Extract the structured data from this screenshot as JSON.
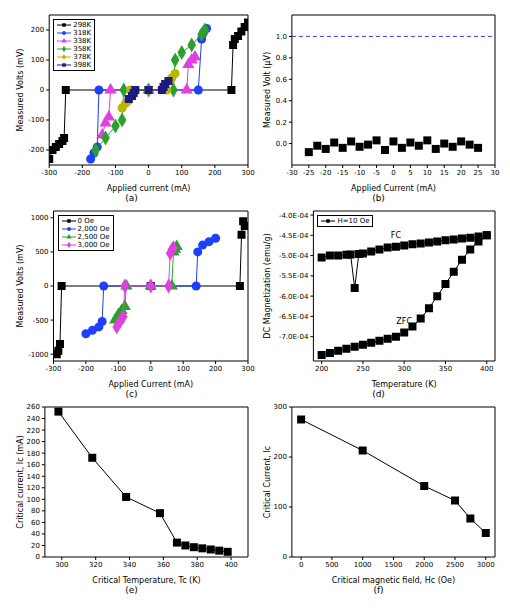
{
  "chart_data": [
    {
      "type": "line",
      "panel_label": "(a)",
      "x_label": "Applied current (mA)",
      "y_label": "Measured Volts (mV)",
      "xlim": [
        -300,
        300
      ],
      "xticks": [
        -300,
        -200,
        -100,
        0,
        100,
        200,
        300
      ],
      "ylim": [
        -250,
        250
      ],
      "yticks": [
        -200,
        -100,
        0,
        100,
        200
      ],
      "legend": "upper left",
      "series": [
        {
          "name": "298K",
          "color": "#000000",
          "marker": "square",
          "x": [
            -300,
            -290,
            -280,
            -270,
            -260,
            -255,
            -250,
            0,
            250,
            255,
            260,
            270,
            280,
            290,
            300
          ],
          "values": [
            -230,
            -200,
            -190,
            -180,
            -170,
            -160,
            0,
            0,
            0,
            150,
            170,
            180,
            195,
            210,
            225
          ]
        },
        {
          "name": "318K",
          "color": "#1f3fff",
          "marker": "circle",
          "x": [
            -175,
            -165,
            -155,
            -150,
            0,
            150,
            160,
            165,
            175
          ],
          "values": [
            -230,
            -210,
            -190,
            0,
            0,
            0,
            170,
            190,
            205
          ]
        },
        {
          "name": "338K",
          "color": "#e040e0",
          "marker": "triangle",
          "x": [
            -140,
            -130,
            -120,
            -115,
            0,
            115,
            120,
            130,
            140
          ],
          "values": [
            -150,
            -110,
            -90,
            0,
            0,
            0,
            85,
            100,
            110
          ]
        },
        {
          "name": "358K",
          "color": "#2ca02c",
          "marker": "diamond",
          "x": [
            -160,
            -130,
            -100,
            -80,
            -75,
            0,
            75,
            80,
            100,
            130,
            160,
            170
          ],
          "values": [
            -200,
            -160,
            -120,
            -100,
            0,
            0,
            0,
            100,
            125,
            150,
            185,
            200
          ]
        },
        {
          "name": "378K",
          "color": "#b8b800",
          "marker": "circle",
          "x": [
            -80,
            -70,
            -60,
            -55,
            0,
            55,
            60,
            70,
            80
          ],
          "values": [
            -60,
            -45,
            -35,
            0,
            0,
            0,
            30,
            40,
            55
          ]
        },
        {
          "name": "398K",
          "color": "#1a1a80",
          "marker": "square",
          "x": [
            -60,
            -50,
            -45,
            -40,
            0,
            40,
            45,
            50,
            60
          ],
          "values": [
            -30,
            -20,
            -10,
            0,
            0,
            0,
            10,
            20,
            30
          ]
        }
      ]
    },
    {
      "type": "scatter",
      "panel_label": "(b)",
      "x_label": "Applied Current (mA)",
      "y_label": "Measured Volt (μV)",
      "xlim": [
        -30,
        30
      ],
      "xticks": [
        -30,
        -25,
        -20,
        -15,
        -10,
        -5,
        0,
        5,
        10,
        15,
        20,
        25,
        30
      ],
      "ylim": [
        -0.2,
        1.2
      ],
      "yticks": [
        {
          "value": 0,
          "label": "0.0"
        },
        0.2,
        0.4,
        0.6,
        0.8,
        {
          "value": 1,
          "label": "1.0"
        }
      ],
      "series": [
        {
          "color": "#000000",
          "marker": "square",
          "x": [
            -25,
            -22.5,
            -20,
            -17.5,
            -15,
            -12.5,
            -10,
            -7.5,
            -5,
            -2.5,
            0,
            2.5,
            5,
            7.5,
            10,
            12.5,
            15,
            17.5,
            20,
            22.5,
            25
          ],
          "values": [
            -0.08,
            -0.02,
            -0.05,
            0.01,
            -0.04,
            0.02,
            -0.03,
            -0.01,
            0.03,
            -0.06,
            0.02,
            -0.04,
            0.01,
            -0.02,
            0.03,
            -0.05,
            0,
            -0.03,
            0.02,
            -0.01,
            -0.04
          ]
        }
      ],
      "reference_lines": [
        {
          "y": 1,
          "color": "#3a3aff",
          "line_style": "dashed"
        }
      ]
    },
    {
      "type": "line",
      "panel_label": "(c)",
      "x_label": "Applied Current (mA)",
      "y_label": "Measured Volts (mV)",
      "xlim": [
        -300,
        300
      ],
      "xticks": [
        -300,
        -200,
        -100,
        0,
        100,
        200,
        300
      ],
      "ylim": [
        -1100,
        1100
      ],
      "yticks": [
        -1000,
        -500,
        0,
        500,
        1000
      ],
      "legend": "upper left",
      "series": [
        {
          "name": "0 Oe",
          "color": "#000000",
          "marker": "square",
          "x": [
            -290,
            -285,
            -280,
            -275,
            0,
            275,
            280,
            285,
            290
          ],
          "values": [
            -1000,
            -950,
            -850,
            0,
            0,
            0,
            750,
            950,
            880
          ]
        },
        {
          "name": "2,000 Oe",
          "color": "#1f3fff",
          "marker": "circle",
          "x": [
            -200,
            -180,
            -160,
            -150,
            -145,
            0,
            140,
            145,
            160,
            180,
            200
          ],
          "values": [
            -700,
            -650,
            -600,
            -520,
            0,
            0,
            0,
            500,
            600,
            650,
            700
          ]
        },
        {
          "name": "2,500 Oe",
          "color": "#2ca02c",
          "marker": "triangle",
          "x": [
            -110,
            -100,
            -90,
            -80,
            -75,
            0,
            65,
            70,
            75,
            80
          ],
          "values": [
            -500,
            -420,
            -360,
            -300,
            0,
            0,
            0,
            500,
            540,
            580
          ]
        },
        {
          "name": "3,000 Oe",
          "color": "#e040e0",
          "marker": "diamond",
          "x": [
            -105,
            -95,
            -85,
            -80,
            0,
            55,
            60,
            65,
            70
          ],
          "values": [
            -600,
            -520,
            -450,
            0,
            0,
            0,
            480,
            530,
            560
          ]
        }
      ]
    },
    {
      "type": "line",
      "panel_label": "(d)",
      "x_label": "Temperature (K)",
      "y_label": "DC Magnetization (emu/g)",
      "xlim": [
        190,
        410
      ],
      "xticks": [
        200,
        250,
        300,
        350,
        400
      ],
      "ylim": [
        -0.00076,
        -0.00039
      ],
      "yticks": [
        {
          "value": -0.0004,
          "label": "-4.0E-04"
        },
        {
          "value": -0.00045,
          "label": "-4.5E-04"
        },
        {
          "value": -0.0005,
          "label": "-5.0E-04"
        },
        {
          "value": -0.00055,
          "label": "-5.5E-04"
        },
        {
          "value": -0.0006,
          "label": "-6.0E-04"
        },
        {
          "value": -0.00065,
          "label": "-6.5E-04"
        },
        {
          "value": -0.0007,
          "label": "-7.0E-04"
        }
      ],
      "legend": "upper left",
      "legend_label": "H=10 Oe",
      "annotations": [
        "FC",
        "ZFC"
      ],
      "series": [
        {
          "color": "#000000",
          "marker": "square",
          "x": [
            200,
            210,
            220,
            230,
            235,
            240,
            245,
            250,
            260,
            270,
            280,
            290,
            300,
            310,
            320,
            330,
            340,
            350,
            360,
            370,
            380,
            390,
            400
          ],
          "values": [
            -0.000505,
            -0.0005,
            -0.0005,
            -0.000498,
            -0.000497,
            -0.00058,
            -0.000496,
            -0.000495,
            -0.00049,
            -0.000485,
            -0.00048,
            -0.000478,
            -0.000475,
            -0.000472,
            -0.00047,
            -0.000468,
            -0.000465,
            -0.000462,
            -0.00046,
            -0.000458,
            -0.000456,
            -0.000453,
            -0.00045
          ]
        },
        {
          "color": "#000000",
          "marker": "square",
          "x": [
            200,
            210,
            220,
            230,
            240,
            250,
            260,
            270,
            280,
            290,
            300,
            310,
            320,
            330,
            340,
            350,
            360,
            370,
            380,
            390,
            400
          ],
          "values": [
            -0.000745,
            -0.00074,
            -0.000735,
            -0.00073,
            -0.000725,
            -0.00072,
            -0.000715,
            -0.00071,
            -0.000705,
            -0.0007,
            -0.00069,
            -0.000675,
            -0.000655,
            -0.00063,
            -0.0006,
            -0.00057,
            -0.00054,
            -0.00051,
            -0.000485,
            -0.000465,
            -0.00045
          ]
        }
      ]
    },
    {
      "type": "line",
      "panel_label": "(e)",
      "x_label": "Critical Temperature, Tc (K)",
      "y_label": "Critical current, Ic (mA)",
      "xlim": [
        290,
        410
      ],
      "xticks": [
        300,
        320,
        340,
        360,
        380,
        400
      ],
      "ylim": [
        0,
        260
      ],
      "yticks": [
        0,
        20,
        40,
        60,
        80,
        100,
        120,
        140,
        160,
        180,
        200,
        220,
        240,
        260
      ],
      "series": [
        {
          "color": "#000000",
          "marker": "square",
          "x": [
            298,
            318,
            338,
            358,
            368,
            373,
            378,
            383,
            388,
            393,
            398
          ],
          "values": [
            252,
            172,
            104,
            76,
            25,
            20,
            17,
            15,
            13,
            11,
            9
          ]
        }
      ]
    },
    {
      "type": "line",
      "panel_label": "(f)",
      "x_label": "Critical magnetic field, Hc (Oe)",
      "y_label": "Critical Current, Ic",
      "xlim": [
        -150,
        3150
      ],
      "xticks": [
        0,
        500,
        1000,
        1500,
        2000,
        2500,
        3000
      ],
      "ylim": [
        0,
        300
      ],
      "yticks": [
        0,
        100,
        200,
        300
      ],
      "series": [
        {
          "color": "#000000",
          "marker": "square",
          "x": [
            0,
            1000,
            2000,
            2500,
            2750,
            3000
          ],
          "values": [
            275,
            213,
            142,
            113,
            77,
            48
          ]
        }
      ]
    }
  ]
}
